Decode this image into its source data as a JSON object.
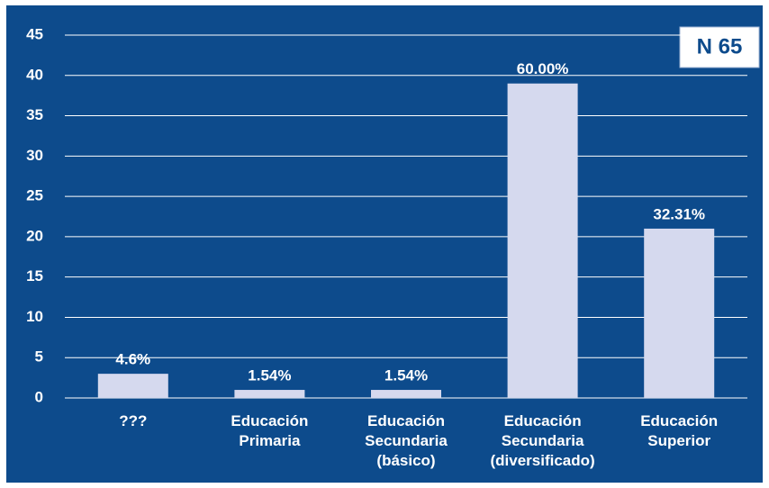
{
  "chart_data": {
    "type": "bar",
    "categories": [
      "???",
      "Educación\nPrimaria",
      "Educación\nSecundaria\n(básico)",
      "Educación\nSecundaria\n(diversificado)",
      "Educación\nSuperior"
    ],
    "values": [
      3,
      1,
      1,
      39,
      21
    ],
    "value_labels": [
      "4.6%",
      "1.54%",
      "1.54%",
      "60.00%",
      "32.31%"
    ],
    "color": "#d5d9ee",
    "ylim": [
      0,
      45
    ],
    "yticks": [
      0,
      5,
      10,
      15,
      20,
      25,
      30,
      35,
      40,
      45
    ],
    "grid": true,
    "annotation": "N 65"
  }
}
